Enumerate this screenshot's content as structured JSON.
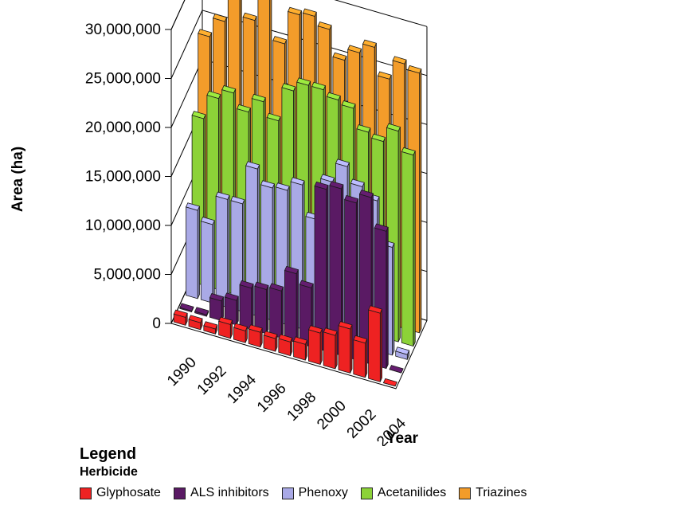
{
  "chart_data": {
    "type": "bar",
    "subtype": "3d-clustered-column",
    "ylabel": "Area (ha)",
    "xlabel": "Year",
    "ylim": [
      0,
      30000000
    ],
    "ytick_labels": [
      "0",
      "5,000,000",
      "10,000,000",
      "15,000,000",
      "20,000,000",
      "25,000,000",
      "30,000,000"
    ],
    "ytick_values": [
      0,
      5000000,
      10000000,
      15000000,
      20000000,
      25000000,
      30000000
    ],
    "categories": [
      "1990",
      "1991",
      "1992",
      "1993",
      "1994",
      "1995",
      "1996",
      "1997",
      "1998",
      "1999",
      "2000",
      "2001",
      "2002",
      "2003",
      "2004"
    ],
    "xtick_labels": [
      "1990",
      "1992",
      "1994",
      "1996",
      "1998",
      "2000",
      "2002",
      "2004"
    ],
    "grid": true,
    "legend_title": "Legend",
    "legend_subtitle": "Herbicide",
    "legend_position": "bottom",
    "series": [
      {
        "name": "Glyphosate",
        "color": "#ee2222",
        "values": [
          800000,
          700000,
          500000,
          1400000,
          1200000,
          1500000,
          1300000,
          1400000,
          1600000,
          3200000,
          3400000,
          4500000,
          3500000,
          7000000,
          0
        ]
      },
      {
        "name": "ALS inhibitors",
        "color": "#5a1a64",
        "values": [
          100000,
          150000,
          2000000,
          2500000,
          4200000,
          4500000,
          4800000,
          7000000,
          6000000,
          16500000,
          17000000,
          16000000,
          17000000,
          14000000,
          0
        ]
      },
      {
        "name": "Phenoxy",
        "color": "#a9a9e6",
        "values": [
          9000000,
          8000000,
          11000000,
          11000000,
          15000000,
          13500000,
          13700000,
          14700000,
          11600000,
          15900000,
          17900000,
          16300000,
          15300000,
          11000000,
          500000
        ]
      },
      {
        "name": "Acetanilides",
        "color": "#8cd238",
        "values": [
          17000000,
          19500000,
          20500000,
          19000000,
          20500000,
          19000000,
          22500000,
          23500000,
          23500000,
          22900000,
          22500000,
          20500000,
          20000000,
          21500000,
          19500000
        ]
      },
      {
        "name": "Triazines",
        "color": "#f39c2a",
        "values": [
          24000000,
          26000000,
          28800000,
          27000000,
          29600000,
          25500000,
          28900000,
          29200000,
          28300000,
          25600000,
          26800000,
          27800000,
          25000000,
          27000000,
          26500000
        ]
      }
    ]
  }
}
